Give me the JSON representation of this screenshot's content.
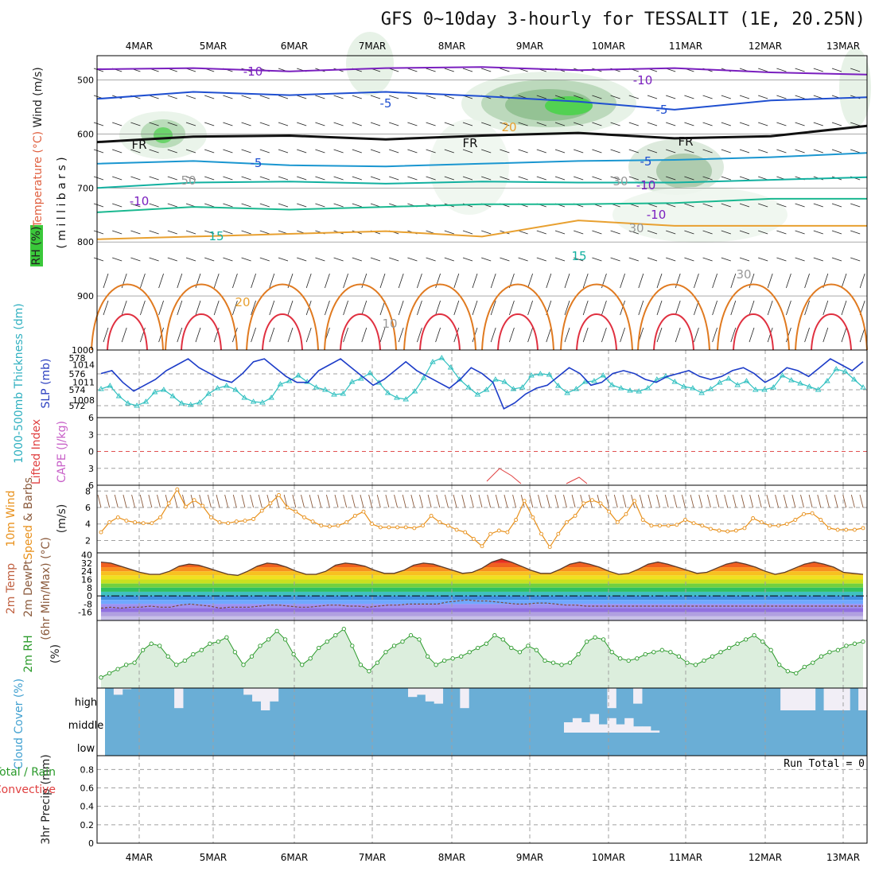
{
  "title": "GFS 0~10day 3-hourly for TESSALIT (1E, 20.25N)",
  "dates": [
    "4MAR",
    "5MAR",
    "6MAR",
    "7MAR",
    "8MAR",
    "9MAR",
    "10MAR",
    "11MAR",
    "12MAR",
    "13MAR"
  ],
  "colors": {
    "grid": "#a0a0a0",
    "frame": "#000000",
    "rh_fill": "#dceedd",
    "green_line": "#2a9a2a",
    "orange": "#e8901a",
    "thk": "#30c0c0",
    "slp": "#1c3cc8",
    "cloud": "#6aaed6",
    "cloud_clear": "#f1eef6"
  },
  "chart_data": [
    {
      "type": "line",
      "panel": "upper-air",
      "ylabels": [
        "Wind (m/s)",
        "Temperature (°C)",
        "RH (%)",
        "( m i l l i b a r s )"
      ],
      "yticks": [
        500,
        600,
        700,
        800,
        900,
        1000
      ],
      "contour_labels": [
        "-10",
        "-10",
        "-5",
        "-5",
        "-5",
        "FR",
        "FR",
        "FR",
        "-5",
        "-10",
        "-10",
        "-10",
        "15",
        "15",
        "20",
        "20",
        "50",
        "30",
        "30",
        "30",
        "10"
      ],
      "series": [
        {
          "level_mb": [
            480,
            478,
            484,
            478,
            476,
            482,
            478,
            486,
            490
          ],
          "label": "-10"
        },
        {
          "level_mb": [
            535,
            522,
            528,
            522,
            530,
            540,
            555,
            538,
            532
          ],
          "label": "-5"
        },
        {
          "level_mb": [
            615,
            605,
            603,
            610,
            603,
            598,
            608,
            604,
            585
          ],
          "label": "FR"
        },
        {
          "level_mb": [
            655,
            650,
            658,
            660,
            655,
            650,
            648,
            643,
            635
          ],
          "label": "-5"
        },
        {
          "level_mb": [
            700,
            690,
            688,
            692,
            688,
            690,
            690,
            685,
            680
          ],
          "label": "-10"
        },
        {
          "level_mb": [
            745,
            735,
            740,
            735,
            730,
            730,
            728,
            720,
            720
          ],
          "label": "15"
        },
        {
          "level_mb": [
            795,
            790,
            785,
            780,
            790,
            760,
            770,
            770,
            770
          ],
          "label": "20"
        }
      ]
    },
    {
      "type": "line",
      "panel": "thickness-slp",
      "ylabels": [
        "1000-500mb Thickness (dm)",
        "SLP (mb)"
      ],
      "yticks_left": [
        572,
        574,
        576,
        578
      ],
      "yticks_right": [
        1008,
        1011,
        1014
      ],
      "series": [
        {
          "name": "Thickness",
          "values": [
            574.1,
            574.5,
            573.2,
            572.3,
            572.0,
            572.5,
            573.7,
            574.0,
            573.2,
            572.3,
            572.1,
            572.4,
            573.5,
            574.2,
            574.5,
            574.0,
            573.0,
            572.5,
            572.4,
            573.0,
            574.7,
            575.1,
            575.8,
            575.0,
            574.3,
            574.0,
            573.4,
            573.5,
            575.0,
            575.4,
            576.1,
            574.9,
            573.6,
            573.0,
            572.8,
            573.8,
            575.5,
            577.5,
            578.0,
            576.8,
            575.3,
            574.3,
            573.4,
            574.0,
            575.3,
            575.0,
            574.1,
            574.3,
            575.8,
            576.0,
            575.9,
            574.5,
            573.6,
            574.1,
            575.0,
            575.1,
            575.8,
            574.6,
            574.2,
            573.9,
            573.8,
            574.2,
            575.3,
            575.7,
            575.0,
            574.4,
            574.2,
            573.6,
            574.1,
            574.9,
            575.4,
            574.6,
            575.1,
            574.0,
            574.0,
            574.3,
            575.8,
            575.2,
            574.8,
            574.4,
            574.0,
            575.1,
            576.6,
            576.3,
            575.3,
            574.3
          ]
        },
        {
          "name": "SLP",
          "values": [
            1012.5,
            1013.0,
            1011.0,
            1009.5,
            1010.5,
            1011.5,
            1013.0,
            1014.0,
            1015.0,
            1013.5,
            1012.5,
            1011.5,
            1011.0,
            1012.5,
            1014.5,
            1015.0,
            1013.5,
            1012.0,
            1011.0,
            1011.0,
            1013.0,
            1014.0,
            1015.0,
            1013.5,
            1012.0,
            1010.5,
            1011.5,
            1013.0,
            1014.5,
            1013.0,
            1012.0,
            1011.0,
            1010.0,
            1011.5,
            1013.5,
            1012.5,
            1011.0,
            1006.5,
            1007.5,
            1009.0,
            1010.0,
            1010.5,
            1012.0,
            1013.5,
            1012.5,
            1010.5,
            1011.0,
            1012.5,
            1013.0,
            1012.5,
            1011.5,
            1011.0,
            1012.0,
            1012.5,
            1013.0,
            1012.0,
            1011.5,
            1012.0,
            1013.0,
            1013.5,
            1012.5,
            1011.0,
            1012.0,
            1013.5,
            1013.0,
            1012.0,
            1013.5,
            1015.0,
            1014.0,
            1013.0,
            1014.5
          ]
        }
      ]
    },
    {
      "type": "line",
      "panel": "cape-li",
      "ylabels": [
        "Lifted Index",
        "CAPE (J/kg)"
      ],
      "yticks": [
        -6,
        -3,
        0,
        3,
        6
      ],
      "series": [
        {
          "name": "Lifted Index",
          "x": [
            6.6,
            6.7,
            6.8,
            6.9,
            7.0,
            7.1
          ],
          "values": [
            6,
            5.2,
            4.8,
            5.5,
            6,
            6
          ]
        },
        {
          "name": "Lifted Index 2",
          "x": [
            6.7,
            6.8,
            6.9,
            7.0
          ],
          "values": [
            6,
            3.5,
            4.5,
            6
          ]
        }
      ]
    },
    {
      "type": "line",
      "panel": "wind10m",
      "ylabels": [
        "10m Wind Speed & Barbs (m/s)"
      ],
      "yticks": [
        2,
        4,
        6,
        8
      ],
      "series": [
        {
          "name": "10m Wind Speed",
          "values": [
            3.0,
            4.2,
            4.8,
            4.4,
            4.2,
            4.1,
            4.1,
            4.8,
            6.5,
            8.2,
            6.1,
            6.9,
            6.2,
            4.8,
            4.2,
            4.1,
            4.3,
            4.4,
            4.6,
            5.6,
            6.5,
            7.5,
            6.0,
            5.5,
            4.8,
            4.3,
            3.8,
            3.7,
            3.8,
            4.2,
            5.0,
            5.5,
            4.0,
            3.6,
            3.6,
            3.6,
            3.6,
            3.5,
            3.8,
            5.0,
            4.2,
            3.8,
            3.3,
            3.0,
            2.2,
            1.3,
            2.8,
            3.2,
            3.0,
            4.5,
            6.8,
            4.8,
            2.8,
            1.2,
            2.8,
            4.2,
            5.0,
            6.5,
            6.9,
            6.5,
            5.5,
            4.2,
            5.2,
            6.8,
            4.5,
            3.8,
            3.8,
            3.8,
            3.9,
            4.5,
            4.1,
            3.8,
            3.4,
            3.2,
            3.1,
            3.2,
            3.5,
            4.7,
            4.2,
            3.8,
            3.8,
            4.0,
            4.5,
            5.2,
            5.3,
            4.5,
            3.5,
            3.3,
            3.3,
            3.3,
            3.5
          ]
        }
      ]
    },
    {
      "type": "area",
      "panel": "temp2m",
      "ylabels": [
        "2m Temp",
        "2m DewPt",
        "(6hr Min/Max) (°C)"
      ],
      "yticks": [
        -16,
        -8,
        0,
        8,
        16,
        24,
        32,
        40
      ],
      "series": [
        {
          "name": "2m Temp",
          "values": [
            33,
            32,
            29,
            26,
            23,
            21,
            21,
            24,
            29,
            31,
            30,
            27,
            24,
            21,
            20,
            24,
            29,
            32,
            31,
            28,
            24,
            21,
            21,
            24,
            30,
            32,
            31,
            29,
            25,
            22,
            22,
            25,
            30,
            32,
            31,
            28,
            25,
            22,
            23,
            27,
            33,
            36,
            33,
            29,
            25,
            22,
            22,
            26,
            31,
            33,
            31,
            28,
            24,
            21,
            22,
            26,
            31,
            33,
            31,
            28,
            25,
            22,
            23,
            27,
            31,
            33,
            31,
            28,
            24,
            21,
            23,
            27,
            31,
            33,
            31,
            28,
            23,
            22,
            21
          ]
        },
        {
          "name": "2m DewPt",
          "values": [
            -12,
            -11,
            -12,
            -11,
            -11,
            -10,
            -11,
            -11,
            -9,
            -8,
            -9,
            -10,
            -12,
            -11,
            -11,
            -11,
            -10,
            -9,
            -9,
            -10,
            -11,
            -11,
            -10,
            -9,
            -9,
            -10,
            -10,
            -11,
            -10,
            -9,
            -9,
            -8,
            -8,
            -8,
            -8,
            -6,
            -5,
            -4,
            -5,
            -5,
            -6,
            -7,
            -8,
            -8,
            -7,
            -7,
            -8,
            -9,
            -9,
            -10,
            -10,
            -10,
            -10,
            -10,
            -10,
            -10,
            -10,
            -10,
            -10,
            -10,
            -10,
            -10,
            -10,
            -10,
            -10,
            -10,
            -10,
            -10,
            -10,
            -10,
            -10,
            -10,
            -10,
            -10,
            -10,
            -10,
            -10,
            -10
          ]
        }
      ]
    },
    {
      "type": "line",
      "panel": "rh2m",
      "ylabels": [
        "2m RH",
        "(%)"
      ],
      "series": [
        {
          "name": "2m RH",
          "values": [
            8,
            10,
            12,
            14,
            15,
            21,
            24,
            23,
            18,
            14,
            16,
            19,
            21,
            24,
            25,
            27,
            20,
            14,
            18,
            23,
            26,
            30,
            26,
            19,
            14,
            17,
            22,
            25,
            28,
            31,
            23,
            14,
            11,
            15,
            20,
            23,
            25,
            28,
            26,
            18,
            14,
            16,
            17,
            18,
            20,
            22,
            24,
            28,
            26,
            22,
            20,
            23,
            21,
            16,
            15,
            14,
            15,
            19,
            25,
            27,
            26,
            20,
            17,
            16,
            17,
            19,
            20,
            21,
            20,
            18,
            15,
            14,
            16,
            18,
            20,
            22,
            24,
            26,
            28,
            25,
            21,
            14,
            11,
            10,
            13,
            15,
            18,
            20,
            21,
            23,
            24,
            25
          ]
        }
      ]
    },
    {
      "type": "bar",
      "panel": "cloud",
      "ylabels": [
        "Cloud Cover (%)"
      ],
      "levels": [
        "high",
        "middle",
        "low"
      ],
      "series": [
        {
          "name": "high clear",
          "values": [
            0,
            0.3,
            0.05,
            0,
            0,
            0,
            0,
            0,
            0.9,
            0,
            0,
            0,
            0,
            0,
            0,
            0,
            0.3,
            0.6,
            1.0,
            0.6,
            0,
            0,
            0,
            0,
            0,
            0,
            0,
            0,
            0,
            0,
            0,
            0,
            0,
            0,
            0,
            0.4,
            0.3,
            0.6,
            0.7,
            0,
            0,
            0.9,
            0,
            0,
            0,
            0,
            0,
            0,
            0,
            0,
            0,
            0,
            0,
            0,
            0,
            0,
            0,
            0,
            0.9,
            0,
            0,
            0.7,
            0,
            0,
            0,
            0,
            0,
            0,
            0,
            0,
            0,
            0,
            0,
            0,
            0,
            0,
            0,
            0,
            1,
            1,
            1,
            1,
            0,
            1,
            1,
            1,
            0,
            1
          ]
        },
        {
          "name": "middle clear",
          "values": [
            0,
            0,
            0,
            0,
            0,
            0,
            0,
            0,
            0,
            0,
            0,
            0,
            0,
            0,
            0,
            0,
            0,
            0,
            0,
            0,
            0,
            0,
            0,
            0,
            0,
            0,
            0,
            0,
            0,
            0,
            0,
            0,
            0,
            0,
            0,
            0,
            0,
            0,
            0,
            0,
            0,
            0,
            0,
            0,
            0,
            0,
            0,
            0,
            0,
            0,
            0,
            0,
            0,
            0.5,
            0.7,
            0.5,
            0.9,
            0.4,
            0.7,
            0.4,
            0.7,
            0.3,
            0.3,
            0.1,
            0,
            0,
            0,
            0,
            0,
            0,
            0,
            0,
            0,
            0,
            0,
            0,
            0,
            0,
            0,
            0,
            0,
            0,
            0,
            0,
            0,
            0,
            0,
            0,
            0
          ]
        }
      ]
    },
    {
      "type": "bar",
      "panel": "precip",
      "ylabels": [
        "3hr Precip (mm)",
        "Total / Rain",
        "Convective"
      ],
      "yticks": [
        0,
        0.2,
        0.4,
        0.6,
        0.8
      ],
      "annotation": "Run Total = 0",
      "values": []
    }
  ]
}
